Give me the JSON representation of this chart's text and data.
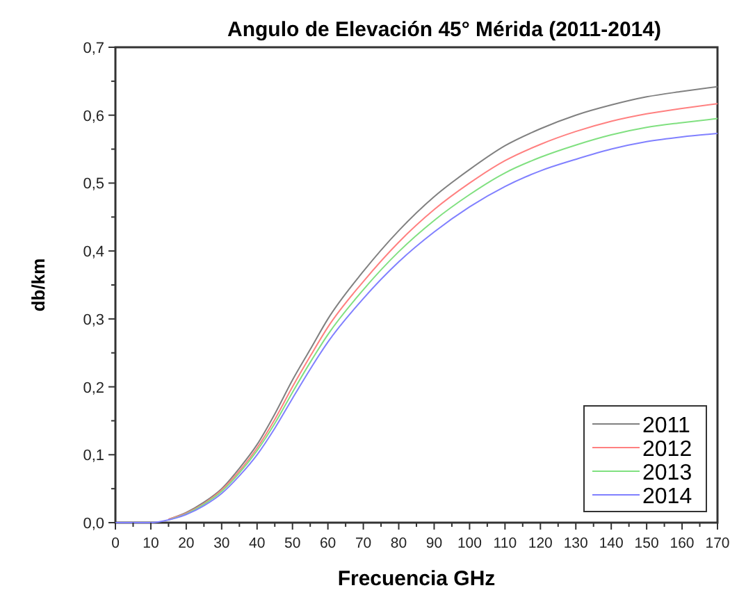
{
  "chart_data": {
    "type": "line",
    "title": "Angulo de Elevación 45° Mérida (2011-2014)",
    "xlabel": "Frecuencia GHz",
    "ylabel": "db/km",
    "x": [
      0,
      10,
      15,
      20,
      25,
      30,
      35,
      40,
      45,
      50,
      55,
      60,
      70,
      80,
      90,
      100,
      110,
      120,
      130,
      140,
      150,
      160,
      170
    ],
    "series": [
      {
        "name": "2011",
        "color": "#808080",
        "values": [
          null,
          null,
          0.005,
          0.015,
          0.03,
          0.05,
          0.08,
          0.115,
          0.16,
          0.21,
          0.255,
          0.3,
          0.37,
          0.43,
          0.48,
          0.52,
          0.555,
          0.58,
          0.6,
          0.615,
          0.627,
          0.635,
          0.642
        ]
      },
      {
        "name": "2012",
        "color": "#ff8080",
        "values": [
          null,
          null,
          0.005,
          0.014,
          0.028,
          0.048,
          0.076,
          0.11,
          0.152,
          0.2,
          0.245,
          0.288,
          0.355,
          0.413,
          0.461,
          0.5,
          0.533,
          0.557,
          0.576,
          0.591,
          0.602,
          0.61,
          0.617
        ]
      },
      {
        "name": "2013",
        "color": "#80e080",
        "values": [
          null,
          null,
          0.004,
          0.013,
          0.027,
          0.046,
          0.073,
          0.106,
          0.146,
          0.192,
          0.236,
          0.277,
          0.343,
          0.399,
          0.445,
          0.483,
          0.515,
          0.538,
          0.556,
          0.571,
          0.582,
          0.589,
          0.595
        ]
      },
      {
        "name": "2014",
        "color": "#8080ff",
        "values": [
          0,
          0,
          0.004,
          0.012,
          0.025,
          0.043,
          0.069,
          0.1,
          0.139,
          0.183,
          0.226,
          0.266,
          0.33,
          0.384,
          0.428,
          0.465,
          0.495,
          0.518,
          0.535,
          0.55,
          0.561,
          0.568,
          0.573
        ]
      }
    ],
    "xlim": [
      0,
      170
    ],
    "xticks": [
      0,
      10,
      20,
      30,
      40,
      50,
      60,
      70,
      80,
      90,
      100,
      110,
      120,
      130,
      140,
      150,
      160,
      170
    ],
    "ylim": [
      0,
      0.7
    ],
    "yticks": [
      {
        "value": 0,
        "label": "0,0"
      },
      {
        "value": 0.1,
        "label": "0,1"
      },
      {
        "value": 0.2,
        "label": "0,2"
      },
      {
        "value": 0.3,
        "label": "0,3"
      },
      {
        "value": 0.4,
        "label": "0,4"
      },
      {
        "value": 0.5,
        "label": "0,5"
      },
      {
        "value": 0.6,
        "label": "0,6"
      },
      {
        "value": 0.7,
        "label": "0,7"
      }
    ],
    "legend": "bottom right",
    "line_style": "solid",
    "grid": false
  }
}
